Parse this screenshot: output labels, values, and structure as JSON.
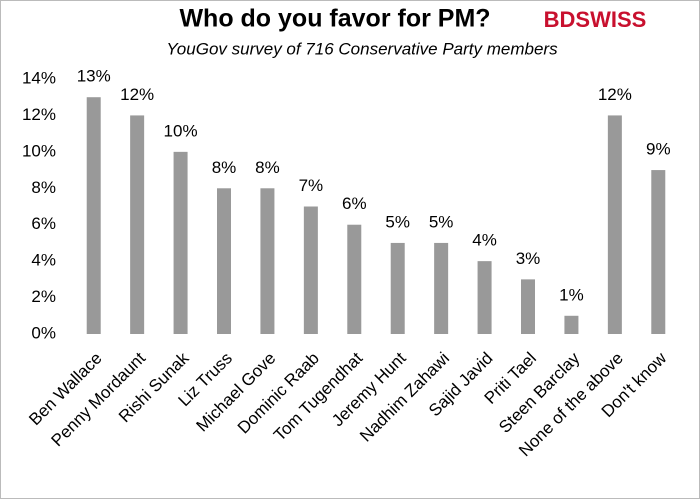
{
  "chart_data": {
    "type": "bar",
    "title": "Who do you favor for PM?",
    "subtitle": "YouGov survey of 716 Conservative Party members",
    "logo": "BDSWISS",
    "categories": [
      "Ben Wallace",
      "Penny Mordaunt",
      "Rishi Sunak",
      "Liz Truss",
      "Michael Gove",
      "Dominic Raab",
      "Tom Tugendhat",
      "Jeremy Hunt",
      "Nadhim Zahawi",
      "Sajid Javid",
      "Priti Tael",
      "Steen Barclay",
      "None of the above",
      "Don't know"
    ],
    "values": [
      13,
      12,
      10,
      8,
      8,
      7,
      6,
      5,
      5,
      4,
      3,
      1,
      12,
      9
    ],
    "value_labels": [
      "13%",
      "12%",
      "10%",
      "8%",
      "8%",
      "7%",
      "6%",
      "5%",
      "5%",
      "4%",
      "3%",
      "1%",
      "12%",
      "9%"
    ],
    "color": "#999999",
    "ylim": [
      0,
      14
    ],
    "yticks": [
      {
        "value": 0,
        "label": "0%"
      },
      {
        "value": 2,
        "label": "2%"
      },
      {
        "value": 4,
        "label": "4%"
      },
      {
        "value": 6,
        "label": "6%"
      },
      {
        "value": 8,
        "label": "8%"
      },
      {
        "value": 10,
        "label": "10%"
      },
      {
        "value": 12,
        "label": "12%"
      },
      {
        "value": 14,
        "label": "14%"
      }
    ],
    "grid": false
  }
}
